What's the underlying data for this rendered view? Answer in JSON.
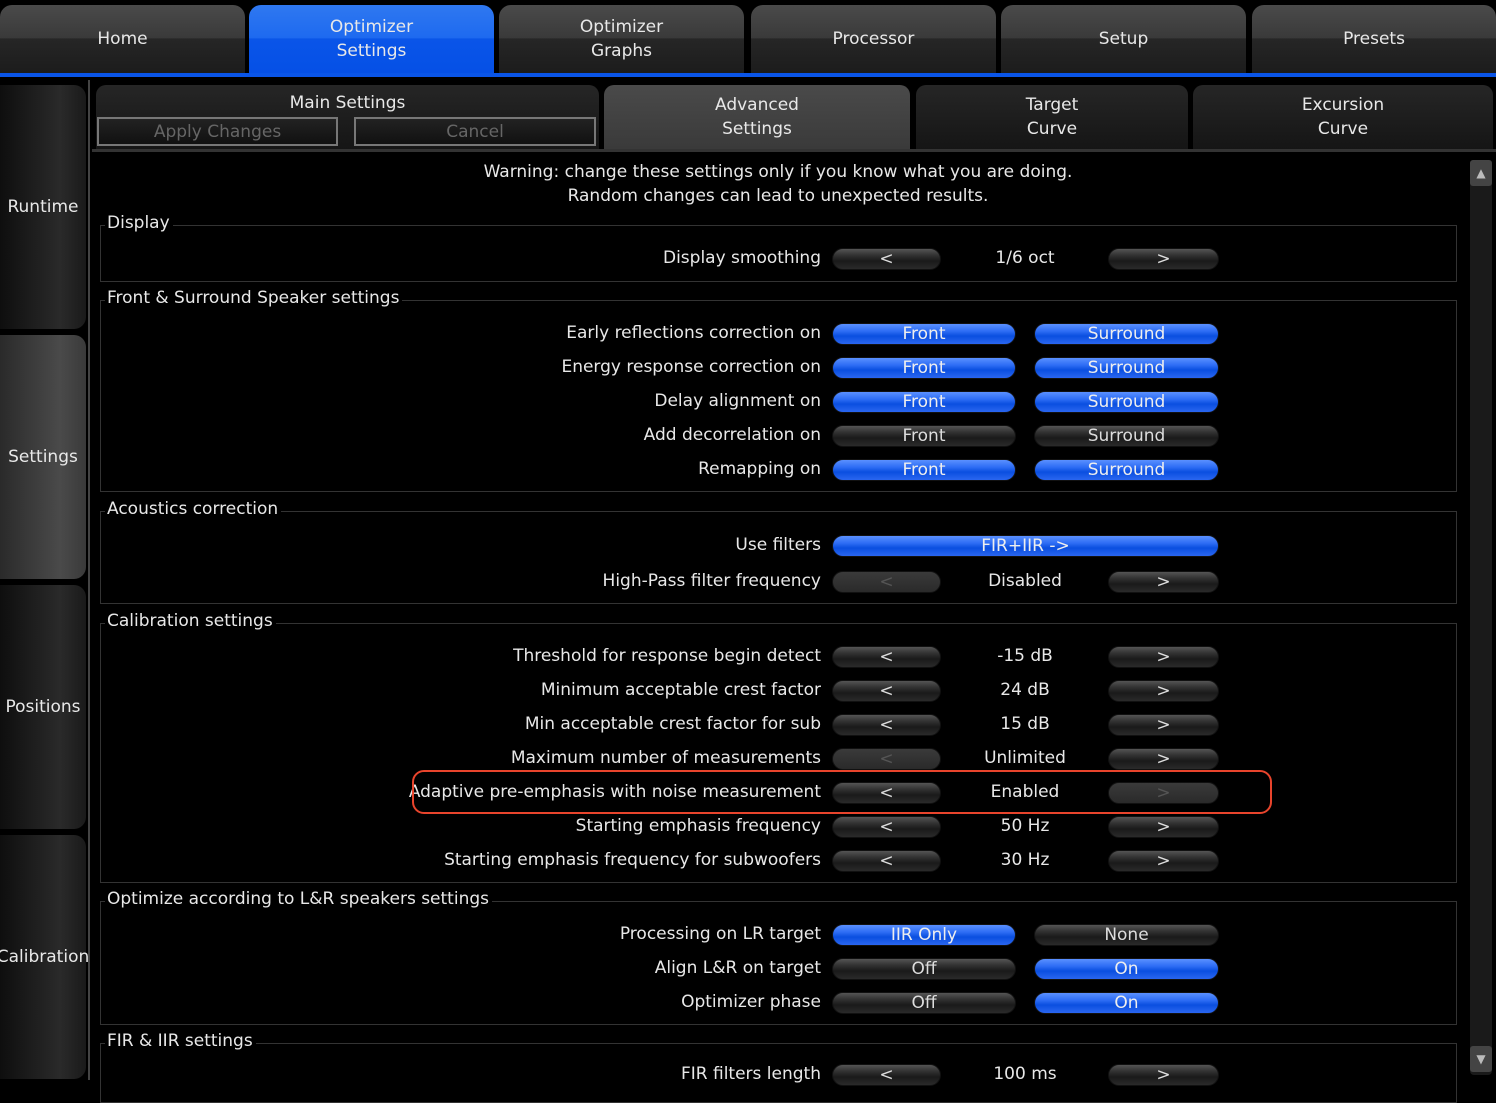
{
  "top_tabs": [
    {
      "label": "Home"
    },
    {
      "label": "Optimizer\nSettings",
      "active": true
    },
    {
      "label": "Optimizer\nGraphs"
    },
    {
      "label": "Processor"
    },
    {
      "label": "Setup"
    },
    {
      "label": "Presets"
    }
  ],
  "side_tabs": [
    {
      "label": "Runtime"
    },
    {
      "label": "Settings",
      "active": true
    },
    {
      "label": "Positions"
    },
    {
      "label": "Calibration"
    }
  ],
  "sub_tabs": {
    "main": "Main Settings",
    "apply": "Apply Changes",
    "cancel": "Cancel",
    "advanced": "Advanced\nSettings",
    "target": "Target\nCurve",
    "excursion": "Excursion\nCurve"
  },
  "warning": "Warning: change these settings only if you know what you are doing.\nRandom changes can lead to unexpected results.",
  "colors": {
    "accent": "#0a55e8",
    "highlight": "#e8442c"
  },
  "groups": [
    {
      "title": "Display",
      "rows": [
        {
          "type": "stepper",
          "label": "Display smoothing",
          "value": "1/6 oct"
        }
      ]
    },
    {
      "title": "Front & Surround Speaker settings",
      "rows": [
        {
          "type": "toggle2",
          "label": "Early reflections correction on",
          "a": "Front",
          "b": "Surround",
          "a_on": true,
          "b_on": true
        },
        {
          "type": "toggle2",
          "label": "Energy response correction on",
          "a": "Front",
          "b": "Surround",
          "a_on": true,
          "b_on": true
        },
        {
          "type": "toggle2",
          "label": "Delay alignment on",
          "a": "Front",
          "b": "Surround",
          "a_on": true,
          "b_on": true
        },
        {
          "type": "toggle2",
          "label": "Add decorrelation on",
          "a": "Front",
          "b": "Surround",
          "a_on": false,
          "b_on": false
        },
        {
          "type": "toggle2",
          "label": "Remapping on",
          "a": "Front",
          "b": "Surround",
          "a_on": true,
          "b_on": true
        }
      ]
    },
    {
      "title": "Acoustics correction",
      "rows": [
        {
          "type": "wide",
          "label": "Use filters",
          "value": "FIR+IIR ->"
        },
        {
          "type": "stepper",
          "label": "High-Pass filter frequency",
          "value": "Disabled",
          "left_disabled": true
        }
      ]
    },
    {
      "title": "Calibration settings",
      "rows": [
        {
          "type": "stepper",
          "label": "Threshold for response begin detect",
          "value": "-15 dB"
        },
        {
          "type": "stepper",
          "label": "Minimum acceptable crest factor",
          "value": "24 dB"
        },
        {
          "type": "stepper",
          "label": "Min acceptable crest factor for sub",
          "value": "15 dB"
        },
        {
          "type": "stepper",
          "label": "Maximum number of measurements",
          "value": "Unlimited",
          "left_disabled": true
        },
        {
          "type": "stepper",
          "label": "Adaptive pre-emphasis with noise measurement",
          "value": "Enabled",
          "right_disabled": true,
          "highlighted": true
        },
        {
          "type": "stepper",
          "label": "Starting emphasis frequency",
          "value": "50 Hz"
        },
        {
          "type": "stepper",
          "label": "Starting emphasis frequency for subwoofers",
          "value": "30 Hz"
        }
      ]
    },
    {
      "title": "Optimize according to L&R speakers settings",
      "rows": [
        {
          "type": "toggle2",
          "label": "Processing on LR target",
          "a": "IIR Only",
          "b": "None",
          "a_on": true,
          "b_on": false
        },
        {
          "type": "toggle2",
          "label": "Align L&R on target",
          "a": "Off",
          "b": "On",
          "a_on": false,
          "b_on": true
        },
        {
          "type": "toggle2",
          "label": "Optimizer phase",
          "a": "Off",
          "b": "On",
          "a_on": false,
          "b_on": true
        }
      ]
    },
    {
      "title": "FIR & IIR settings",
      "rows": [
        {
          "type": "stepper",
          "label": "FIR filters length",
          "value": "100 ms"
        }
      ]
    }
  ],
  "arrows": {
    "left": "<",
    "right": ">"
  }
}
